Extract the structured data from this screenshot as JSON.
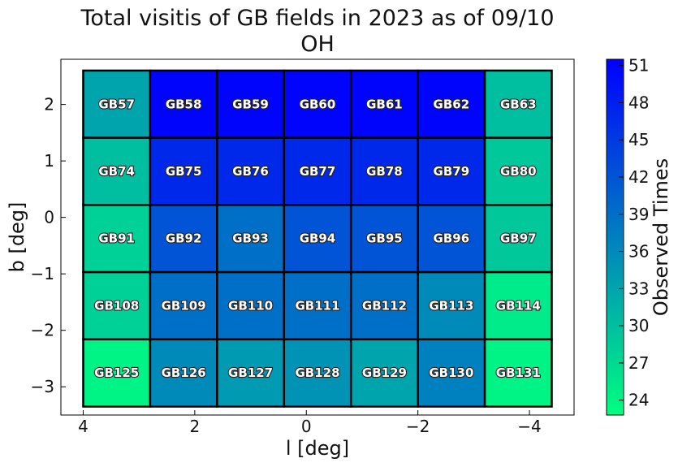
{
  "chart_data": {
    "type": "heatmap",
    "title": [
      "Total visitis of GB fields in 2023 as of 09/10",
      "OH"
    ],
    "xlabel": "l [deg]",
    "ylabel": "b [deg]",
    "xlim": [
      4.4,
      -4.8
    ],
    "ylim": [
      -3.5,
      2.8
    ],
    "x_ticks": [
      4,
      2,
      0,
      -2,
      -4
    ],
    "x_tick_labels": [
      "4",
      "2",
      "0",
      "−2",
      "−4"
    ],
    "y_ticks": [
      2,
      1,
      0,
      -1,
      -2,
      -3
    ],
    "y_tick_labels": [
      "2",
      "1",
      "0",
      "−1",
      "−2",
      "−3"
    ],
    "cell_l_edges": [
      4.0,
      2.8,
      1.6,
      0.4,
      -0.8,
      -2.0,
      -3.2,
      -4.4
    ],
    "cell_b_edges": [
      2.6,
      1.41,
      0.22,
      -0.97,
      -2.16,
      -3.35
    ],
    "rows": [
      {
        "fields": [
          "GB57",
          "GB58",
          "GB59",
          "GB60",
          "GB61",
          "GB62",
          "GB63"
        ],
        "values": [
          33,
          51,
          51,
          51,
          51,
          51,
          30
        ]
      },
      {
        "fields": [
          "GB74",
          "GB75",
          "GB76",
          "GB77",
          "GB78",
          "GB79",
          "GB80"
        ],
        "values": [
          30,
          47,
          47,
          47,
          47,
          47,
          29
        ]
      },
      {
        "fields": [
          "GB91",
          "GB92",
          "GB93",
          "GB94",
          "GB95",
          "GB96",
          "GB97"
        ],
        "values": [
          28,
          42,
          39,
          42,
          42,
          42,
          29
        ]
      },
      {
        "fields": [
          "GB108",
          "GB109",
          "GB110",
          "GB111",
          "GB112",
          "GB113",
          "GB114"
        ],
        "values": [
          28,
          39,
          39,
          39,
          39,
          36,
          25
        ]
      },
      {
        "fields": [
          "GB125",
          "GB126",
          "GB127",
          "GB128",
          "GB129",
          "GB130",
          "GB131"
        ],
        "values": [
          24,
          36,
          34,
          35,
          33,
          37,
          24
        ]
      }
    ],
    "colorbar": {
      "label": "Observed Times",
      "vmin": 22.8,
      "vmax": 51.5,
      "ticks": [
        24,
        27,
        30,
        33,
        36,
        39,
        42,
        45,
        48,
        51
      ],
      "colormap": "winter",
      "color_low": "#00ff80",
      "color_high": "#0000ff"
    },
    "grid": false
  }
}
